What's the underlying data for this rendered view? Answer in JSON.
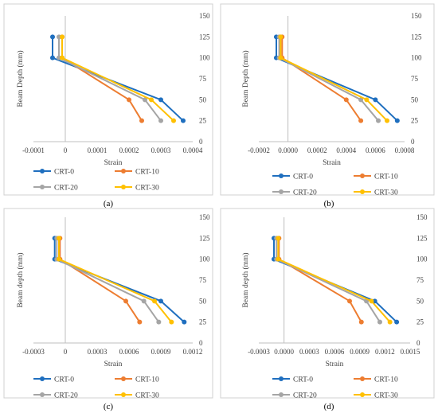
{
  "colors": {
    "CRT-0": "#1f6fbf",
    "CRT-10": "#ed7d31",
    "CRT-20": "#a5a5a5",
    "CRT-30": "#ffc000"
  },
  "chart_data": [
    {
      "type": "line",
      "caption": "(a)",
      "xlabel": "Strain",
      "ylabel": "Beam Depth (mm)",
      "xlim": [
        -0.0001,
        0.0004
      ],
      "ylim": [
        0,
        150
      ],
      "x_ticks": [
        "-0.0001",
        "0",
        "0.0001",
        "0.0002",
        "0.0003",
        "0.0004"
      ],
      "y_ticks": [
        "0",
        "25",
        "50",
        "75",
        "100",
        "125",
        "150"
      ],
      "legend_position": "bottom",
      "series": [
        {
          "name": "CRT-0",
          "points": [
            {
              "x": -4e-05,
              "y": 125
            },
            {
              "x": -4e-05,
              "y": 100
            },
            {
              "x": 0.0003,
              "y": 50
            },
            {
              "x": 0.00037,
              "y": 25
            }
          ]
        },
        {
          "name": "CRT-10",
          "points": [
            {
              "x": -1e-05,
              "y": 125
            },
            {
              "x": -1e-05,
              "y": 100
            },
            {
              "x": 0.0002,
              "y": 50
            },
            {
              "x": 0.00024,
              "y": 25
            }
          ]
        },
        {
          "name": "CRT-20",
          "points": [
            {
              "x": -2e-05,
              "y": 125
            },
            {
              "x": -2e-05,
              "y": 100
            },
            {
              "x": 0.00025,
              "y": 50
            },
            {
              "x": 0.0003,
              "y": 25
            }
          ]
        },
        {
          "name": "CRT-30",
          "points": [
            {
              "x": -1e-05,
              "y": 125
            },
            {
              "x": -1e-05,
              "y": 100
            },
            {
              "x": 0.00027,
              "y": 50
            },
            {
              "x": 0.00034,
              "y": 25
            }
          ]
        }
      ]
    },
    {
      "type": "line",
      "caption": "(b)",
      "xlabel": "Strain",
      "ylabel": "Beam Depth (mm)",
      "xlim": [
        -0.0002,
        0.0008
      ],
      "ylim": [
        0,
        150
      ],
      "x_ticks": [
        "-0.0002",
        "0.0000",
        "0.0002",
        "0.0004",
        "0.0006",
        "0.0008"
      ],
      "y_ticks": [
        "0",
        "25",
        "50",
        "75",
        "100",
        "125",
        "150"
      ],
      "legend_position": "bottom",
      "series": [
        {
          "name": "CRT-0",
          "points": [
            {
              "x": -8e-05,
              "y": 125
            },
            {
              "x": -8e-05,
              "y": 100
            },
            {
              "x": 0.0006,
              "y": 50
            },
            {
              "x": 0.00075,
              "y": 25
            }
          ]
        },
        {
          "name": "CRT-10",
          "points": [
            {
              "x": -4e-05,
              "y": 125
            },
            {
              "x": -4e-05,
              "y": 100
            },
            {
              "x": 0.0004,
              "y": 50
            },
            {
              "x": 0.0005,
              "y": 25
            }
          ]
        },
        {
          "name": "CRT-20",
          "points": [
            {
              "x": -6e-05,
              "y": 125
            },
            {
              "x": -6e-05,
              "y": 100
            },
            {
              "x": 0.0005,
              "y": 50
            },
            {
              "x": 0.00062,
              "y": 25
            }
          ]
        },
        {
          "name": "CRT-30",
          "points": [
            {
              "x": -5e-05,
              "y": 125
            },
            {
              "x": -5e-05,
              "y": 100
            },
            {
              "x": 0.00054,
              "y": 50
            },
            {
              "x": 0.00068,
              "y": 25
            }
          ]
        }
      ]
    },
    {
      "type": "line",
      "caption": "(c)",
      "xlabel": "Strain",
      "ylabel": "Beam depth (mm)",
      "xlim": [
        -0.0003,
        0.0012
      ],
      "ylim": [
        0,
        150
      ],
      "x_ticks": [
        "-0.0003",
        "0",
        "0.0003",
        "0.0006",
        "0.0009",
        "0.0012"
      ],
      "y_ticks": [
        "0",
        "25",
        "50",
        "75",
        "100",
        "125",
        "150"
      ],
      "legend_position": "bottom",
      "series": [
        {
          "name": "CRT-0",
          "points": [
            {
              "x": -0.0001,
              "y": 125
            },
            {
              "x": -0.0001,
              "y": 100
            },
            {
              "x": 0.0009,
              "y": 50
            },
            {
              "x": 0.00112,
              "y": 25
            }
          ]
        },
        {
          "name": "CRT-10",
          "points": [
            {
              "x": -5e-05,
              "y": 125
            },
            {
              "x": -5e-05,
              "y": 100
            },
            {
              "x": 0.00057,
              "y": 50
            },
            {
              "x": 0.0007,
              "y": 25
            }
          ]
        },
        {
          "name": "CRT-20",
          "points": [
            {
              "x": -8e-05,
              "y": 125
            },
            {
              "x": -8e-05,
              "y": 100
            },
            {
              "x": 0.00074,
              "y": 50
            },
            {
              "x": 0.00088,
              "y": 25
            }
          ]
        },
        {
          "name": "CRT-30",
          "points": [
            {
              "x": -6e-05,
              "y": 125
            },
            {
              "x": -6e-05,
              "y": 100
            },
            {
              "x": 0.00084,
              "y": 50
            },
            {
              "x": 0.001,
              "y": 25
            }
          ]
        }
      ]
    },
    {
      "type": "line",
      "caption": "(d)",
      "xlabel": "Strain",
      "ylabel": "Beam depth (mm)",
      "xlim": [
        -0.0003,
        0.0015
      ],
      "ylim": [
        0,
        150
      ],
      "x_ticks": [
        "-0.0003",
        "0.0000",
        "0.0003",
        "0.0006",
        "0.0009",
        "0.0012",
        "0.0015"
      ],
      "y_ticks": [
        "0",
        "25",
        "50",
        "75",
        "100",
        "125",
        "150"
      ],
      "legend_position": "bottom",
      "series": [
        {
          "name": "CRT-0",
          "points": [
            {
              "x": -0.00012,
              "y": 125
            },
            {
              "x": -0.00012,
              "y": 100
            },
            {
              "x": 0.00108,
              "y": 50
            },
            {
              "x": 0.00134,
              "y": 25
            }
          ]
        },
        {
          "name": "CRT-10",
          "points": [
            {
              "x": -6e-05,
              "y": 125
            },
            {
              "x": -6e-05,
              "y": 100
            },
            {
              "x": 0.00078,
              "y": 50
            },
            {
              "x": 0.00092,
              "y": 25
            }
          ]
        },
        {
          "name": "CRT-20",
          "points": [
            {
              "x": -9e-05,
              "y": 125
            },
            {
              "x": -9e-05,
              "y": 100
            },
            {
              "x": 0.00098,
              "y": 50
            },
            {
              "x": 0.00114,
              "y": 25
            }
          ]
        },
        {
          "name": "CRT-30",
          "points": [
            {
              "x": -7e-05,
              "y": 125
            },
            {
              "x": -7e-05,
              "y": 100
            },
            {
              "x": 0.00104,
              "y": 50
            },
            {
              "x": 0.00126,
              "y": 25
            }
          ]
        }
      ]
    }
  ]
}
